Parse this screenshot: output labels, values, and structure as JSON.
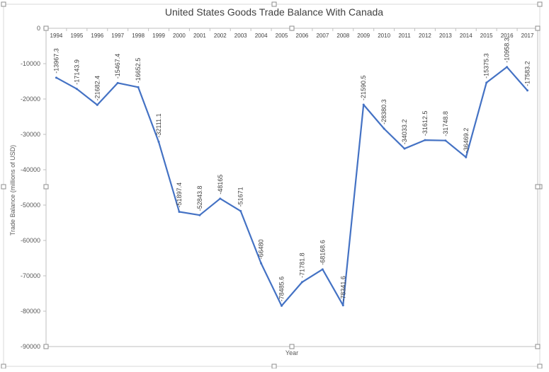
{
  "chart_data": {
    "type": "line",
    "title": "United States Goods Trade Balance With Canada",
    "xlabel": "Year",
    "ylabel": "Trade Balance (millions of USD)",
    "ylim": [
      -90000,
      0
    ],
    "yticks": [
      0,
      -10000,
      -20000,
      -30000,
      -40000,
      -50000,
      -60000,
      -70000,
      -80000,
      -90000
    ],
    "categories": [
      "1994",
      "1995",
      "1996",
      "1997",
      "1998",
      "1999",
      "2000",
      "2001",
      "2002",
      "2003",
      "2004",
      "2005",
      "2006",
      "2007",
      "2008",
      "2009",
      "2010",
      "2011",
      "2012",
      "2013",
      "2014",
      "2015",
      "2016",
      "2017"
    ],
    "series": [
      {
        "values": [
          -13967.3,
          -17143.9,
          -21682.4,
          -15467.4,
          -16652.5,
          -32111.1,
          -51897.4,
          -52843.8,
          -48165,
          -51671,
          -66480,
          -78485.6,
          -71781.8,
          -68168.6,
          -78341.6,
          -21590.5,
          -28380.3,
          -34033.2,
          -31612.5,
          -31748.8,
          -36469.2,
          -15375.3,
          -10958.3,
          -17583.2
        ],
        "labels": [
          "-13967.3",
          "-17143.9",
          "-21682.4",
          "-15467.4",
          "-16652.5",
          "-32111.1",
          "-51897.4",
          "-52843.8",
          "-48165",
          "-51671",
          "-66480",
          "-78485.6",
          "-71781.8",
          "-68168.6",
          "-78341.6",
          "-21590.5",
          "-28380.3",
          "-34033.2",
          "-31612.5",
          "-31748.8",
          "-36469.2",
          "-15375.3",
          "-10958.3",
          "-17583.2"
        ],
        "color": "#4472c4"
      }
    ],
    "grid": false,
    "x_axis_position": "top"
  }
}
